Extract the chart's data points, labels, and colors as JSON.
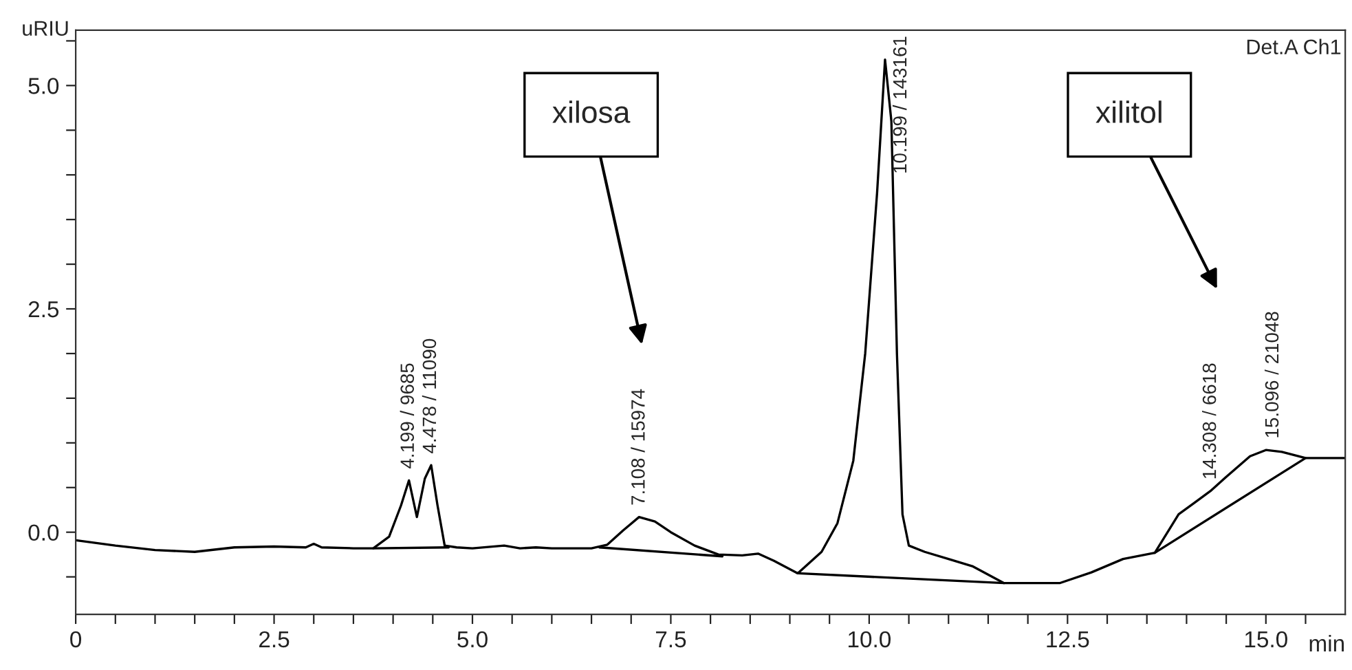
{
  "chart_data": {
    "type": "line",
    "xlabel": "min",
    "ylabel": "uRIU",
    "xlim": [
      0,
      16.0
    ],
    "ylim": [
      -0.92,
      5.62
    ],
    "xticks": [
      0,
      {
        "value": 0.5,
        "label": null
      },
      {
        "value": 1.0,
        "label": null
      },
      {
        "value": 1.5,
        "label": null
      },
      {
        "value": 2.0,
        "label": null
      },
      {
        "value": 2.5,
        "label": "2.5"
      },
      {
        "value": 3.0,
        "label": null
      },
      {
        "value": 3.5,
        "label": null
      },
      {
        "value": 4.0,
        "label": null
      },
      {
        "value": 4.5,
        "label": null
      },
      {
        "value": 5.0,
        "label": "5.0"
      },
      {
        "value": 5.5,
        "label": null
      },
      {
        "value": 6.0,
        "label": null
      },
      {
        "value": 6.5,
        "label": null
      },
      {
        "value": 7.0,
        "label": null
      },
      {
        "value": 7.5,
        "label": "7.5"
      },
      {
        "value": 8.0,
        "label": null
      },
      {
        "value": 8.5,
        "label": null
      },
      {
        "value": 9.0,
        "label": null
      },
      {
        "value": 9.5,
        "label": null
      },
      {
        "value": 10.0,
        "label": "10.0"
      },
      {
        "value": 10.5,
        "label": null
      },
      {
        "value": 11.0,
        "label": null
      },
      {
        "value": 11.5,
        "label": null
      },
      {
        "value": 12.0,
        "label": null
      },
      {
        "value": 12.5,
        "label": "12.5"
      },
      {
        "value": 13.0,
        "label": null
      },
      {
        "value": 13.5,
        "label": null
      },
      {
        "value": 14.0,
        "label": null
      },
      {
        "value": 14.5,
        "label": null
      },
      {
        "value": 15.0,
        "label": "15.0"
      },
      {
        "value": 15.5,
        "label": null
      }
    ],
    "yticks": [
      {
        "value": -0.5,
        "label": null
      },
      {
        "value": 0.0,
        "label": "0.0"
      },
      {
        "value": 0.5,
        "label": null
      },
      {
        "value": 1.0,
        "label": null
      },
      {
        "value": 1.5,
        "label": null
      },
      {
        "value": 2.0,
        "label": null
      },
      {
        "value": 2.5,
        "label": "2.5"
      },
      {
        "value": 3.0,
        "label": null
      },
      {
        "value": 3.5,
        "label": null
      },
      {
        "value": 4.0,
        "label": null
      },
      {
        "value": 4.5,
        "label": null
      },
      {
        "value": 5.0,
        "label": "5.0"
      },
      {
        "value": 5.5,
        "label": null
      }
    ],
    "series": [
      {
        "color": "#000000",
        "x": [
          0,
          0.5,
          1.0,
          1.5,
          2.0,
          2.5,
          2.9,
          3.0,
          3.1,
          3.5,
          3.75,
          3.95,
          4.1,
          4.2,
          4.3,
          4.4,
          4.48,
          4.56,
          4.65,
          4.8,
          5.0,
          5.4,
          5.6,
          5.8,
          6.0,
          6.5,
          6.7,
          6.9,
          7.1,
          7.3,
          7.5,
          7.8,
          8.1,
          8.4,
          8.6,
          8.8,
          9.1,
          9.4,
          9.6,
          9.8,
          9.95,
          10.1,
          10.2,
          10.28,
          10.35,
          10.42,
          10.5,
          10.7,
          11.0,
          11.3,
          11.7,
          12.0,
          12.4,
          12.8,
          13.2,
          13.6,
          13.9,
          14.1,
          14.3,
          14.5,
          14.8,
          15.0,
          15.2,
          15.5,
          16.0
        ],
        "values": [
          -0.09,
          -0.15,
          -0.2,
          -0.22,
          -0.17,
          -0.16,
          -0.17,
          -0.13,
          -0.17,
          -0.18,
          -0.18,
          -0.05,
          0.3,
          0.58,
          0.17,
          0.6,
          0.75,
          0.3,
          -0.15,
          -0.17,
          -0.18,
          -0.15,
          -0.18,
          -0.17,
          -0.18,
          -0.18,
          -0.14,
          0.02,
          0.17,
          0.12,
          0.0,
          -0.15,
          -0.25,
          -0.26,
          -0.24,
          -0.32,
          -0.46,
          -0.22,
          0.1,
          0.8,
          2.0,
          3.8,
          5.29,
          4.6,
          2.0,
          0.2,
          -0.15,
          -0.22,
          -0.3,
          -0.38,
          -0.57,
          -0.57,
          -0.57,
          -0.45,
          -0.3,
          -0.23,
          0.2,
          0.33,
          0.46,
          0.62,
          0.85,
          0.92,
          0.9,
          0.83,
          0.83
        ]
      },
      {
        "color": "#000000",
        "x": [
          3.75,
          4.7,
          null,
          6.6,
          8.15,
          null,
          9.1,
          11.7,
          null,
          13.6,
          15.5
        ],
        "values": [
          -0.18,
          -0.17,
          null,
          -0.17,
          -0.27,
          null,
          -0.46,
          -0.57,
          null,
          -0.23,
          0.83
        ]
      }
    ],
    "annotations": [
      "Det.A Ch1",
      {
        "text": "4.199 / 9685",
        "x": 4.199,
        "y": 0.58
      },
      {
        "text": "4.478 / 11090",
        "x": 4.478,
        "y": 0.75
      },
      {
        "text": "7.108 / 15974",
        "x": 7.108,
        "y": 0.17
      },
      {
        "text": "10.199 / 143161",
        "x": 10.199,
        "y": 5.29
      },
      {
        "text": "14.308 / 6618",
        "x": 14.308,
        "y": 0.46
      },
      {
        "text": "15.096 / 21048",
        "x": 15.096,
        "y": 0.92
      },
      "xilosa",
      "xilitol"
    ]
  }
}
